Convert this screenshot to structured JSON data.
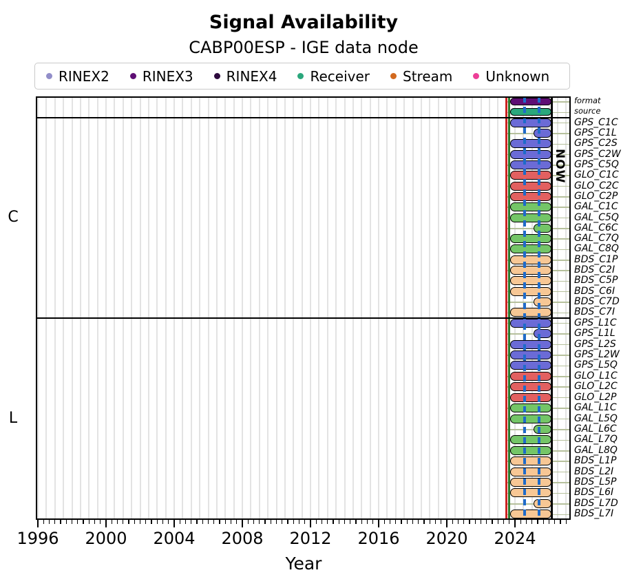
{
  "title": "Signal Availability",
  "subtitle": "CABP00ESP - IGE data node",
  "xlabel": "Year",
  "now_label": "NOW",
  "legend": {
    "items": [
      {
        "label": "RINEX2",
        "color": "#928ec9"
      },
      {
        "label": "RINEX3",
        "color": "#5e0e74"
      },
      {
        "label": "RINEX4",
        "color": "#2d0a3d"
      },
      {
        "label": "Receiver",
        "color": "#2aa77c"
      },
      {
        "label": "Stream",
        "color": "#d2691f"
      },
      {
        "label": "Unknown",
        "color": "#ed3e97"
      }
    ]
  },
  "chart_data": {
    "type": "bar",
    "subtype": "horizontal-availability-timeline",
    "title": "Signal Availability",
    "xlabel": "Year",
    "xlim": [
      1996,
      2027.2
    ],
    "x_major_ticks": [
      1996,
      2000,
      2004,
      2008,
      2012,
      2016,
      2020,
      2024
    ],
    "grid": "vertical, 6-month spacing",
    "minor_ticks": "4-month spacing",
    "now": 2026.15,
    "annotations": {
      "red_line_year": 2023.5,
      "green_line_year": 2023.65,
      "blue_dashed_years": [
        2024.57,
        2025.42
      ]
    },
    "system_colors": {
      "RINEX3": "#5e0e74",
      "Receiver": "#2aa77c",
      "GPS": "#6b6bd6",
      "GLO": "#e26060",
      "GAL": "#74c567",
      "BDS": "#f7c795"
    },
    "sections": [
      {
        "label": "",
        "rows": [
          {
            "label": "format",
            "system": "RINEX3",
            "start": 2023.7,
            "end": 2026.05
          },
          {
            "label": "source",
            "system": "Receiver",
            "start": 2023.7,
            "end": 2026.05
          }
        ]
      },
      {
        "label": "C",
        "rows": [
          {
            "label": "GPS_C1C",
            "system": "GPS",
            "start": 2023.7,
            "end": 2026.05
          },
          {
            "label": "GPS_C1L",
            "system": "GPS",
            "start": 2025.1,
            "end": 2026.05
          },
          {
            "label": "GPS_C2S",
            "system": "GPS",
            "start": 2023.7,
            "end": 2026.05
          },
          {
            "label": "GPS_C2W",
            "system": "GPS",
            "start": 2023.7,
            "end": 2026.05
          },
          {
            "label": "GPS_C5Q",
            "system": "GPS",
            "start": 2023.7,
            "end": 2026.05
          },
          {
            "label": "GLO_C1C",
            "system": "GLO",
            "start": 2023.7,
            "end": 2026.05
          },
          {
            "label": "GLO_C2C",
            "system": "GLO",
            "start": 2023.7,
            "end": 2026.05
          },
          {
            "label": "GLO_C2P",
            "system": "GLO",
            "start": 2023.7,
            "end": 2026.05
          },
          {
            "label": "GAL_C1C",
            "system": "GAL",
            "start": 2023.7,
            "end": 2026.05
          },
          {
            "label": "GAL_C5Q",
            "system": "GAL",
            "start": 2023.7,
            "end": 2026.05
          },
          {
            "label": "GAL_C6C",
            "system": "GAL",
            "start": 2025.1,
            "end": 2026.05
          },
          {
            "label": "GAL_C7Q",
            "system": "GAL",
            "start": 2023.7,
            "end": 2026.05
          },
          {
            "label": "GAL_C8Q",
            "system": "GAL",
            "start": 2023.7,
            "end": 2026.05
          },
          {
            "label": "BDS_C1P",
            "system": "BDS",
            "start": 2023.7,
            "end": 2026.05
          },
          {
            "label": "BDS_C2I",
            "system": "BDS",
            "start": 2023.7,
            "end": 2026.05
          },
          {
            "label": "BDS_C5P",
            "system": "BDS",
            "start": 2023.7,
            "end": 2026.05
          },
          {
            "label": "BDS_C6I",
            "system": "BDS",
            "start": 2023.7,
            "end": 2026.05
          },
          {
            "label": "BDS_C7D",
            "system": "BDS",
            "start": 2025.1,
            "end": 2026.05
          },
          {
            "label": "BDS_C7I",
            "system": "BDS",
            "start": 2023.7,
            "end": 2026.05
          }
        ]
      },
      {
        "label": "L",
        "rows": [
          {
            "label": "GPS_L1C",
            "system": "GPS",
            "start": 2023.7,
            "end": 2026.05
          },
          {
            "label": "GPS_L1L",
            "system": "GPS",
            "start": 2025.1,
            "end": 2026.05
          },
          {
            "label": "GPS_L2S",
            "system": "GPS",
            "start": 2023.7,
            "end": 2026.05
          },
          {
            "label": "GPS_L2W",
            "system": "GPS",
            "start": 2023.7,
            "end": 2026.05
          },
          {
            "label": "GPS_L5Q",
            "system": "GPS",
            "start": 2023.7,
            "end": 2026.05
          },
          {
            "label": "GLO_L1C",
            "system": "GLO",
            "start": 2023.7,
            "end": 2026.05
          },
          {
            "label": "GLO_L2C",
            "system": "GLO",
            "start": 2023.7,
            "end": 2026.05
          },
          {
            "label": "GLO_L2P",
            "system": "GLO",
            "start": 2023.7,
            "end": 2026.05
          },
          {
            "label": "GAL_L1C",
            "system": "GAL",
            "start": 2023.7,
            "end": 2026.05
          },
          {
            "label": "GAL_L5Q",
            "system": "GAL",
            "start": 2023.7,
            "end": 2026.05
          },
          {
            "label": "GAL_L6C",
            "system": "GAL",
            "start": 2025.1,
            "end": 2026.05
          },
          {
            "label": "GAL_L7Q",
            "system": "GAL",
            "start": 2023.7,
            "end": 2026.05
          },
          {
            "label": "GAL_L8Q",
            "system": "GAL",
            "start": 2023.7,
            "end": 2026.05
          },
          {
            "label": "BDS_L1P",
            "system": "BDS",
            "start": 2023.7,
            "end": 2026.05
          },
          {
            "label": "BDS_L2I",
            "system": "BDS",
            "start": 2023.7,
            "end": 2026.05
          },
          {
            "label": "BDS_L5P",
            "system": "BDS",
            "start": 2023.7,
            "end": 2026.05
          },
          {
            "label": "BDS_L6I",
            "system": "BDS",
            "start": 2023.7,
            "end": 2026.05
          },
          {
            "label": "BDS_L7D",
            "system": "BDS",
            "start": 2025.1,
            "end": 2026.05
          },
          {
            "label": "BDS_L7I",
            "system": "BDS",
            "start": 2023.7,
            "end": 2026.05
          }
        ]
      }
    ]
  }
}
